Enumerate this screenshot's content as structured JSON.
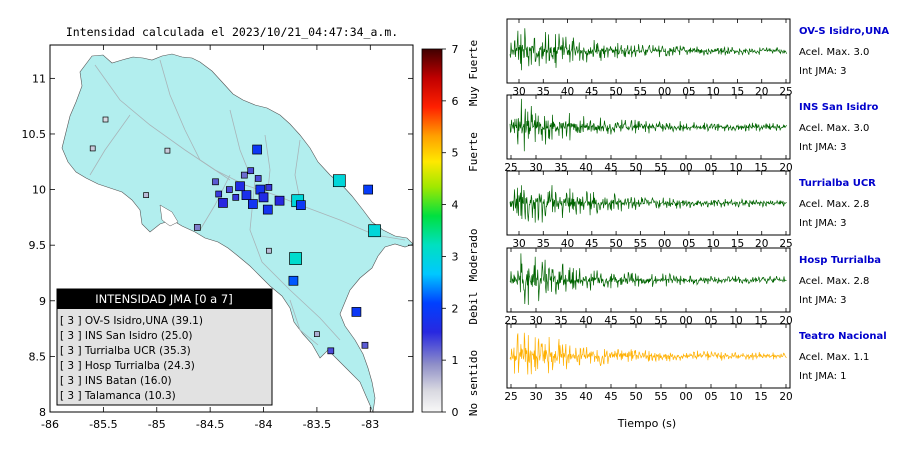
{
  "map": {
    "title": "Intensidad calculada el 2023/10/21_04:47:34_a.m.",
    "lon_ticks": [
      "-86",
      "-85.5",
      "-85",
      "-84.5",
      "-84",
      "-83.5",
      "-83"
    ],
    "lat_ticks": [
      "11",
      "10.5",
      "10",
      "9.5",
      "9",
      "8.5",
      "8"
    ],
    "xlim": [
      -86,
      -82.6
    ],
    "ylim": [
      8.0,
      11.3
    ],
    "land_color": "#b2eeee",
    "water_color": "#ffffff"
  },
  "colorbar": {
    "ticks": [
      "0",
      "1",
      "2",
      "3",
      "4",
      "5",
      "6",
      "7"
    ],
    "labels": [
      "No sentido",
      "Debil",
      "Moderado",
      "Fuerte",
      "Muy Fuerte"
    ],
    "range": [
      0,
      7
    ]
  },
  "legend": {
    "title": "INTENSIDAD JMA [0 a 7]",
    "entries": [
      "[ 3 ]  OV-S Isidro,UNA (39.1)",
      "[ 3 ]  INS San Isidro (25.0)",
      "[ 3 ]  Turrialba UCR (35.3)",
      "[ 3 ]  Hosp Turrialba (24.3)",
      "[ 3 ]  INS Batan (16.0)",
      "[ 3 ]  Talamanca (10.3)"
    ]
  },
  "chart_data": [
    {
      "type": "scatter",
      "title": "Intensidad calculada el 2023/10/21_04:47:34_a.m.",
      "xlabel": "",
      "ylabel": "",
      "xlim": [
        -86,
        -82.6
      ],
      "ylim": [
        8,
        11.3
      ],
      "grid": false,
      "points": [
        {
          "lon": -84.06,
          "lat": 10.36,
          "jma": 1.9
        },
        {
          "lon": -83.29,
          "lat": 10.08,
          "jma": 3.0
        },
        {
          "lon": -84.1,
          "lat": 9.87,
          "jma": 1.8
        },
        {
          "lon": -84.16,
          "lat": 9.95,
          "jma": 1.7
        },
        {
          "lon": -84.03,
          "lat": 10.0,
          "jma": 1.8
        },
        {
          "lon": -83.96,
          "lat": 9.82,
          "jma": 1.8
        },
        {
          "lon": -83.68,
          "lat": 9.9,
          "jma": 3.0
        },
        {
          "lon": -83.65,
          "lat": 9.86,
          "jma": 1.9
        },
        {
          "lon": -82.96,
          "lat": 9.63,
          "jma": 3.0
        },
        {
          "lon": -83.7,
          "lat": 9.38,
          "jma": 3.1
        },
        {
          "lon": -83.72,
          "lat": 9.18,
          "jma": 2.2
        },
        {
          "lon": -83.13,
          "lat": 8.9,
          "jma": 1.9
        },
        {
          "lon": -84.22,
          "lat": 10.03,
          "jma": 1.6
        },
        {
          "lon": -84.12,
          "lat": 10.17,
          "jma": 1.3
        },
        {
          "lon": -84.26,
          "lat": 9.93,
          "jma": 1.4
        },
        {
          "lon": -84.0,
          "lat": 9.93,
          "jma": 1.6
        },
        {
          "lon": -84.42,
          "lat": 9.96,
          "jma": 1.4
        },
        {
          "lon": -84.32,
          "lat": 10.0,
          "jma": 1.3
        },
        {
          "lon": -83.85,
          "lat": 9.9,
          "jma": 1.5
        },
        {
          "lon": -83.95,
          "lat": 10.02,
          "jma": 1.4
        },
        {
          "lon": -84.45,
          "lat": 10.07,
          "jma": 1.2
        },
        {
          "lon": -84.05,
          "lat": 10.1,
          "jma": 1.3
        },
        {
          "lon": -84.18,
          "lat": 10.13,
          "jma": 1.1
        },
        {
          "lon": -83.02,
          "lat": 10.0,
          "jma": 2.0
        },
        {
          "lon": -84.9,
          "lat": 10.35,
          "jma": 0.5
        },
        {
          "lon": -85.48,
          "lat": 10.63,
          "jma": 0.4
        },
        {
          "lon": -85.6,
          "lat": 10.37,
          "jma": 0.5
        },
        {
          "lon": -85.1,
          "lat": 9.95,
          "jma": 0.6
        },
        {
          "lon": -84.62,
          "lat": 9.66,
          "jma": 1.0
        },
        {
          "lon": -83.37,
          "lat": 8.55,
          "jma": 1.3
        },
        {
          "lon": -83.05,
          "lat": 8.6,
          "jma": 1.2
        },
        {
          "lon": -83.5,
          "lat": 8.7,
          "jma": 0.7
        },
        {
          "lon": -83.95,
          "lat": 9.45,
          "jma": 0.6
        },
        {
          "lon": -84.38,
          "lat": 9.88,
          "jma": 1.5
        }
      ]
    },
    {
      "type": "line",
      "title": "OV-S Isidro,UNA",
      "xlabel": "",
      "ylabel": "",
      "x_ticks": [
        "30",
        "35",
        "40",
        "45",
        "50",
        "55",
        "00",
        "05",
        "10",
        "15",
        "20",
        "25"
      ],
      "pga": "Acel. Max. 3.0",
      "jma": "Int JMA: 3",
      "series": [
        {
          "color": "#006400"
        }
      ]
    },
    {
      "type": "line",
      "title": "INS San Isidro",
      "xlabel": "",
      "ylabel": "",
      "x_ticks": [
        "25",
        "30",
        "35",
        "40",
        "45",
        "50",
        "55",
        "00",
        "05",
        "10",
        "15",
        "20"
      ],
      "pga": "Acel. Max. 3.0",
      "jma": "Int JMA: 3",
      "series": [
        {
          "color": "#006400"
        }
      ]
    },
    {
      "type": "line",
      "title": "Turrialba UCR",
      "xlabel": "",
      "ylabel": "",
      "x_ticks": [
        "30",
        "35",
        "40",
        "45",
        "50",
        "55",
        "00",
        "05",
        "10",
        "15",
        "20",
        "25"
      ],
      "pga": "Acel. Max. 2.8",
      "jma": "Int JMA: 3",
      "series": [
        {
          "color": "#006400"
        }
      ]
    },
    {
      "type": "line",
      "title": "Hosp Turrialba",
      "xlabel": "",
      "ylabel": "",
      "x_ticks": [
        "25",
        "30",
        "35",
        "40",
        "45",
        "50",
        "55",
        "00",
        "05",
        "10",
        "15",
        "20"
      ],
      "pga": "Acel. Max. 2.8",
      "jma": "Int JMA: 3",
      "series": [
        {
          "color": "#006400"
        }
      ]
    },
    {
      "type": "line",
      "title": "Teatro Nacional",
      "xlabel": "Tiempo (s)",
      "ylabel": "",
      "x_ticks": [
        "25",
        "30",
        "35",
        "40",
        "45",
        "50",
        "55",
        "00",
        "05",
        "10",
        "15",
        "20"
      ],
      "pga": "Acel. Max. 1.1",
      "jma": "Int JMA: 1",
      "series": [
        {
          "color": "#ffb000"
        }
      ]
    }
  ]
}
